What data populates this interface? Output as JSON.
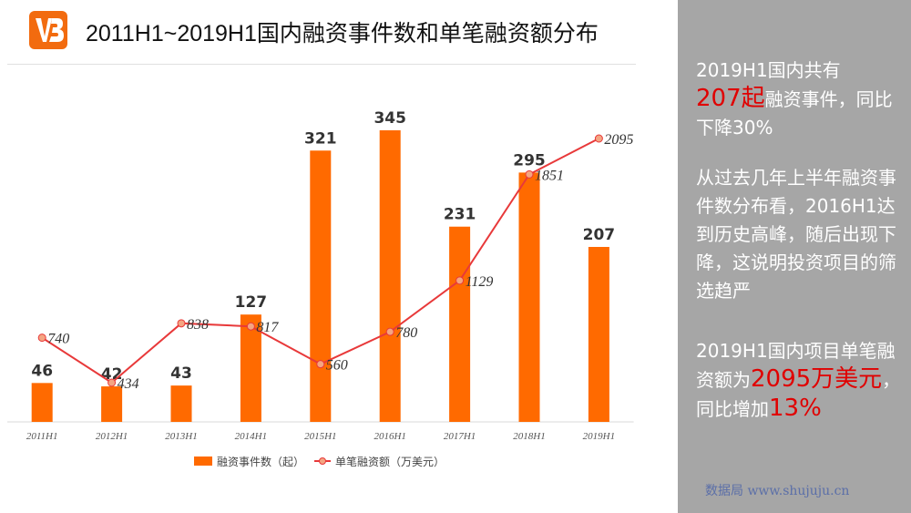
{
  "header": {
    "title": "2011H1~2019H1国内融资事件数和单笔融资额分布"
  },
  "colors": {
    "bar": "#ff6a00",
    "line": "#e8393a",
    "panel": "#a6a6a6",
    "highlight": "#e00000"
  },
  "chart_data": {
    "type": "bar",
    "categories": [
      "2011H1",
      "2012H1",
      "2013H1",
      "2014H1",
      "2015H1",
      "2016H1",
      "2017H1",
      "2018H1",
      "2019H1"
    ],
    "series": [
      {
        "name": "融资事件数（起）",
        "type": "bar",
        "values": [
          46,
          42,
          43,
          127,
          321,
          345,
          231,
          295,
          207
        ]
      },
      {
        "name": "单笔融资额（万美元）",
        "type": "line",
        "values": [
          740,
          434,
          838,
          817,
          560,
          780,
          1129,
          1851,
          2095
        ]
      }
    ],
    "legend_position": "bottom",
    "grid": false
  },
  "panel": {
    "p1_a": "2019H1国内共有",
    "p1_b": "207起",
    "p1_c": "融资事件，同比下降30%",
    "p2": "从过去几年上半年融资事件数分布看，2016H1达到历史高峰，随后出现下降，这说明投资项目的筛选趋严",
    "p3_a": "2019H1国内项目单笔融资额为",
    "p3_b": "2095万美元",
    "p3_c": "，同比增加",
    "p3_d": "13%",
    "footer": "数据局 www.shujuju.cn"
  }
}
